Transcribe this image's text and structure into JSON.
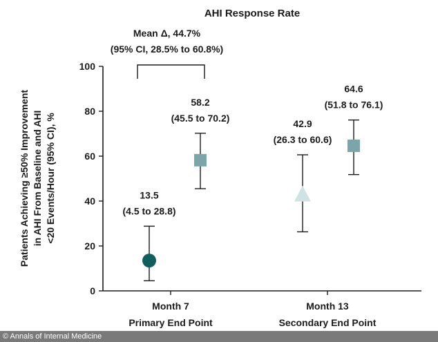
{
  "chart_data": {
    "type": "scatter",
    "title": "AHI Response Rate",
    "ylabel_lines": [
      "Patients Achieving ≥50% Improvement",
      "in AHI From Baseline and AHI",
      "<20 Events/Hour (95% CI), %"
    ],
    "ylim": [
      0,
      100
    ],
    "yticks": [
      "0",
      "20",
      "40",
      "60",
      "80",
      "100"
    ],
    "categories": [
      {
        "line1": "Month 7",
        "line2": "Primary End Point"
      },
      {
        "line1": "Month 13",
        "line2": "Secondary End Point"
      }
    ],
    "points": [
      {
        "category": 0,
        "slot": 0,
        "marker": "circle",
        "color": "#0f5f5f",
        "value": 13.5,
        "ci_low": 4.5,
        "ci_high": 28.8,
        "label_value": "13.5",
        "label_ci": "(4.5 to 28.8)"
      },
      {
        "category": 0,
        "slot": 1,
        "marker": "square",
        "color": "#7aa6aa",
        "value": 58.2,
        "ci_low": 45.5,
        "ci_high": 70.2,
        "label_value": "58.2",
        "label_ci": "(45.5 to 70.2)"
      },
      {
        "category": 1,
        "slot": 0,
        "marker": "triangle",
        "color": "#cfe3e5",
        "value": 42.9,
        "ci_low": 26.3,
        "ci_high": 60.6,
        "label_value": "42.9",
        "label_ci": "(26.3 to 60.6)"
      },
      {
        "category": 1,
        "slot": 1,
        "marker": "square",
        "color": "#7aa6aa",
        "value": 64.6,
        "ci_low": 51.8,
        "ci_high": 76.1,
        "label_value": "64.6",
        "label_ci": "(51.8 to 76.1)"
      }
    ],
    "annotation": {
      "line1": "Mean Δ, 44.7%",
      "line2": "(95% CI, 28.5% to 60.8%)",
      "bracket_y": 100
    },
    "grid": false,
    "legend": "none"
  },
  "footer": {
    "text": "© Annals of Internal Medicine"
  }
}
